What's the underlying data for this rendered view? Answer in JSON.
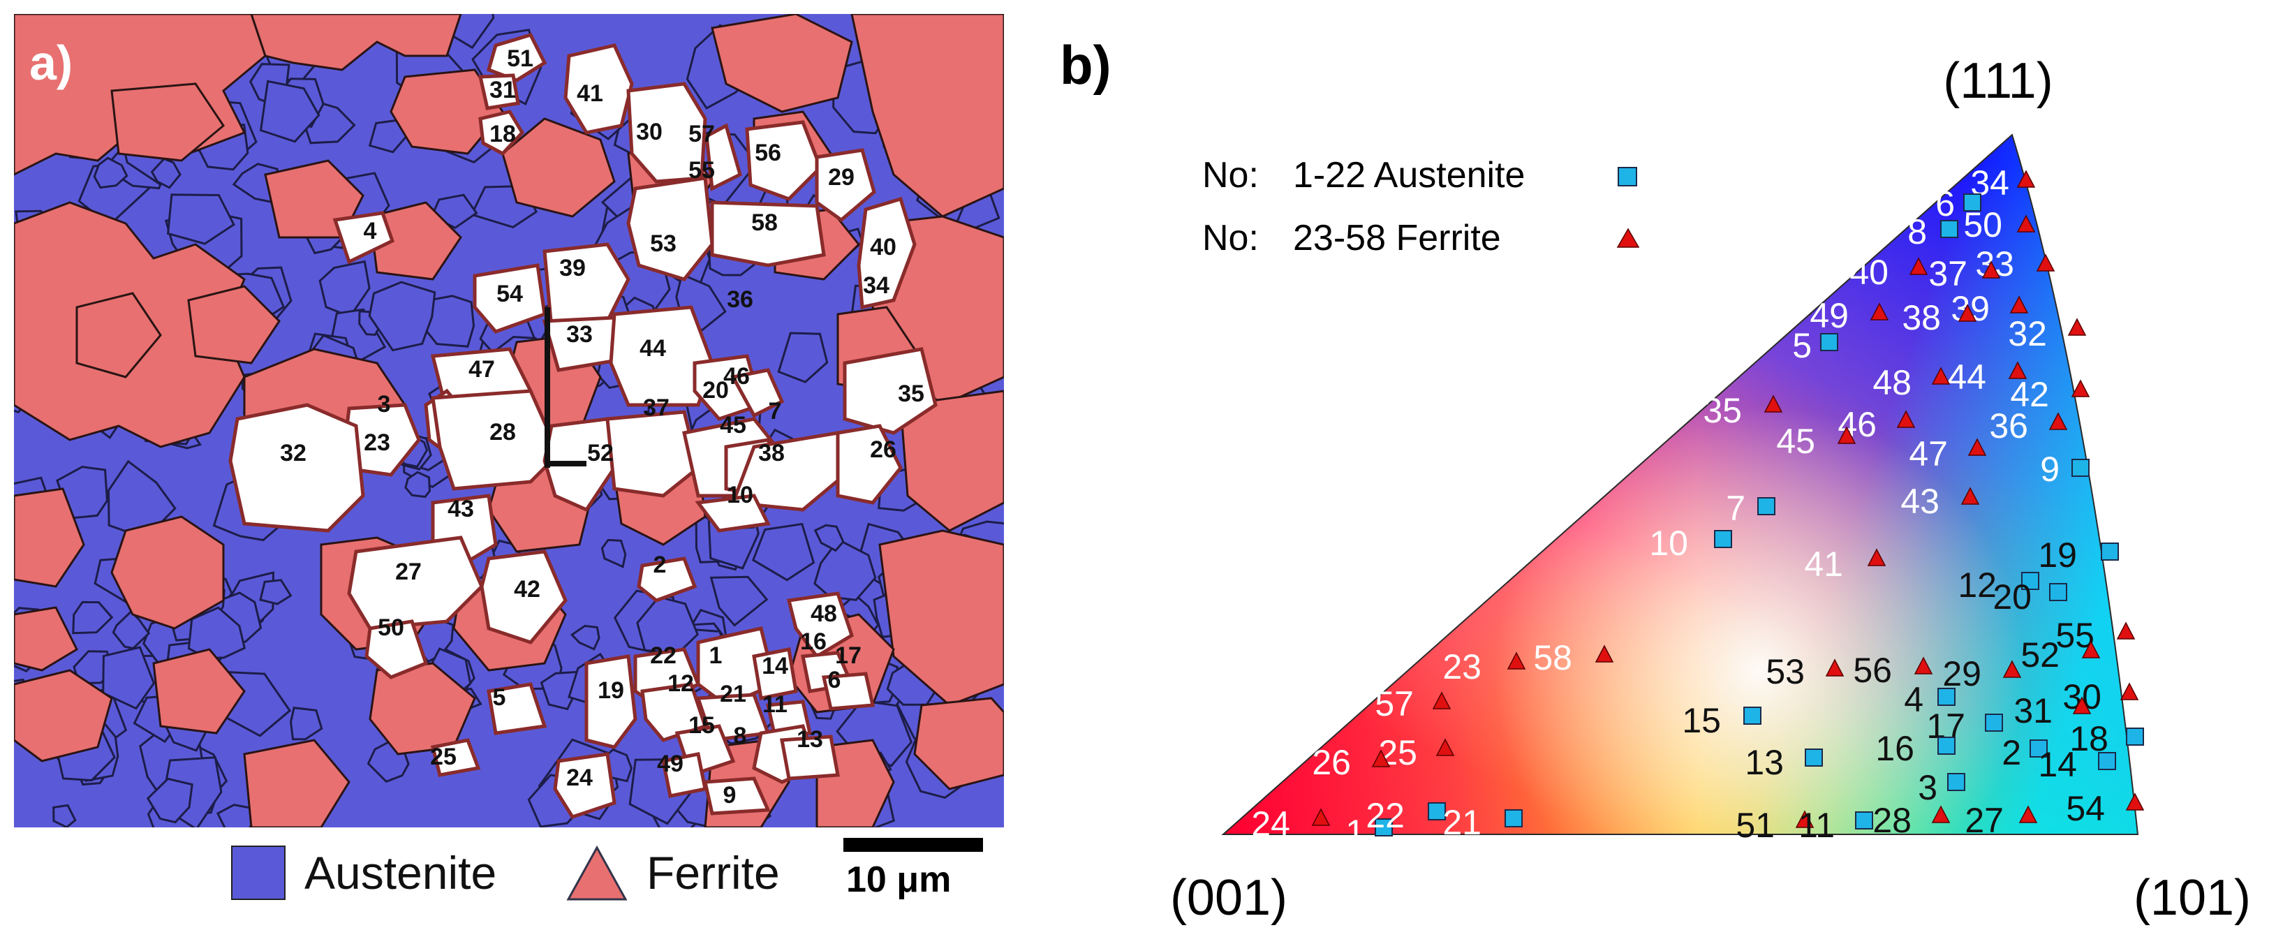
{
  "panel_a": {
    "label": "a)",
    "legend": [
      {
        "label": "Austenite",
        "color": "#5a5ad8",
        "shape": "square"
      },
      {
        "label": "Ferrite",
        "color": "#e87070",
        "shape": "triangle"
      }
    ],
    "scale_bar": "10 μm",
    "grain_labels": [
      "51",
      "31",
      "18",
      "41",
      "30",
      "57",
      "55",
      "56",
      "29",
      "4",
      "58",
      "53",
      "40",
      "39",
      "36",
      "34",
      "54",
      "33",
      "44",
      "46",
      "20",
      "47",
      "35",
      "3",
      "23",
      "28",
      "37",
      "45",
      "7",
      "32",
      "52",
      "38",
      "26",
      "43",
      "10",
      "27",
      "42",
      "2",
      "48",
      "16",
      "17",
      "50",
      "22",
      "1",
      "14",
      "6",
      "12",
      "21",
      "11",
      "5",
      "19",
      "15",
      "8",
      "13",
      "25",
      "24",
      "49",
      "9"
    ],
    "colors": {
      "austenite": "#5a5ad8",
      "ferrite": "#e87070",
      "selected": "#ffffff"
    }
  },
  "panel_b": {
    "label": "b)",
    "corners": {
      "c001": "(001)",
      "c101": "(101)",
      "c111": "(111)"
    },
    "legend": [
      {
        "prefix": "No:",
        "label": "1-22 Austenite",
        "marker": "square",
        "color": "#1eb4e8"
      },
      {
        "prefix": "No:",
        "label": "23-58 Ferrite",
        "marker": "triangle",
        "color": "#e01010"
      }
    ],
    "points": [
      {
        "n": "34",
        "phase": "ferrite"
      },
      {
        "n": "6",
        "phase": "austenite"
      },
      {
        "n": "50",
        "phase": "ferrite"
      },
      {
        "n": "8",
        "phase": "austenite"
      },
      {
        "n": "33",
        "phase": "ferrite"
      },
      {
        "n": "37",
        "phase": "ferrite"
      },
      {
        "n": "40",
        "phase": "ferrite"
      },
      {
        "n": "39",
        "phase": "ferrite"
      },
      {
        "n": "38",
        "phase": "ferrite"
      },
      {
        "n": "49",
        "phase": "ferrite"
      },
      {
        "n": "32",
        "phase": "ferrite"
      },
      {
        "n": "5",
        "phase": "austenite"
      },
      {
        "n": "44",
        "phase": "ferrite"
      },
      {
        "n": "48",
        "phase": "ferrite"
      },
      {
        "n": "42",
        "phase": "ferrite"
      },
      {
        "n": "35",
        "phase": "ferrite"
      },
      {
        "n": "46",
        "phase": "ferrite"
      },
      {
        "n": "36",
        "phase": "ferrite"
      },
      {
        "n": "45",
        "phase": "ferrite"
      },
      {
        "n": "47",
        "phase": "ferrite"
      },
      {
        "n": "9",
        "phase": "austenite"
      },
      {
        "n": "43",
        "phase": "ferrite"
      },
      {
        "n": "7",
        "phase": "austenite"
      },
      {
        "n": "10",
        "phase": "austenite"
      },
      {
        "n": "41",
        "phase": "ferrite"
      },
      {
        "n": "19",
        "phase": "austenite"
      },
      {
        "n": "12",
        "phase": "austenite"
      },
      {
        "n": "20",
        "phase": "austenite"
      },
      {
        "n": "55",
        "phase": "ferrite"
      },
      {
        "n": "52",
        "phase": "ferrite"
      },
      {
        "n": "58",
        "phase": "ferrite"
      },
      {
        "n": "23",
        "phase": "ferrite"
      },
      {
        "n": "53",
        "phase": "ferrite"
      },
      {
        "n": "56",
        "phase": "ferrite"
      },
      {
        "n": "29",
        "phase": "ferrite"
      },
      {
        "n": "30",
        "phase": "ferrite"
      },
      {
        "n": "57",
        "phase": "ferrite"
      },
      {
        "n": "4",
        "phase": "austenite"
      },
      {
        "n": "31",
        "phase": "ferrite"
      },
      {
        "n": "17",
        "phase": "austenite"
      },
      {
        "n": "15",
        "phase": "austenite"
      },
      {
        "n": "18",
        "phase": "austenite"
      },
      {
        "n": "2",
        "phase": "austenite"
      },
      {
        "n": "16",
        "phase": "austenite"
      },
      {
        "n": "14",
        "phase": "austenite"
      },
      {
        "n": "25",
        "phase": "ferrite"
      },
      {
        "n": "26",
        "phase": "ferrite"
      },
      {
        "n": "13",
        "phase": "austenite"
      },
      {
        "n": "3",
        "phase": "austenite"
      },
      {
        "n": "54",
        "phase": "ferrite"
      },
      {
        "n": "24",
        "phase": "ferrite"
      },
      {
        "n": "1",
        "phase": "austenite"
      },
      {
        "n": "22",
        "phase": "austenite"
      },
      {
        "n": "21",
        "phase": "austenite"
      },
      {
        "n": "51",
        "phase": "ferrite"
      },
      {
        "n": "11",
        "phase": "austenite"
      },
      {
        "n": "28",
        "phase": "ferrite"
      },
      {
        "n": "27",
        "phase": "ferrite"
      }
    ]
  }
}
